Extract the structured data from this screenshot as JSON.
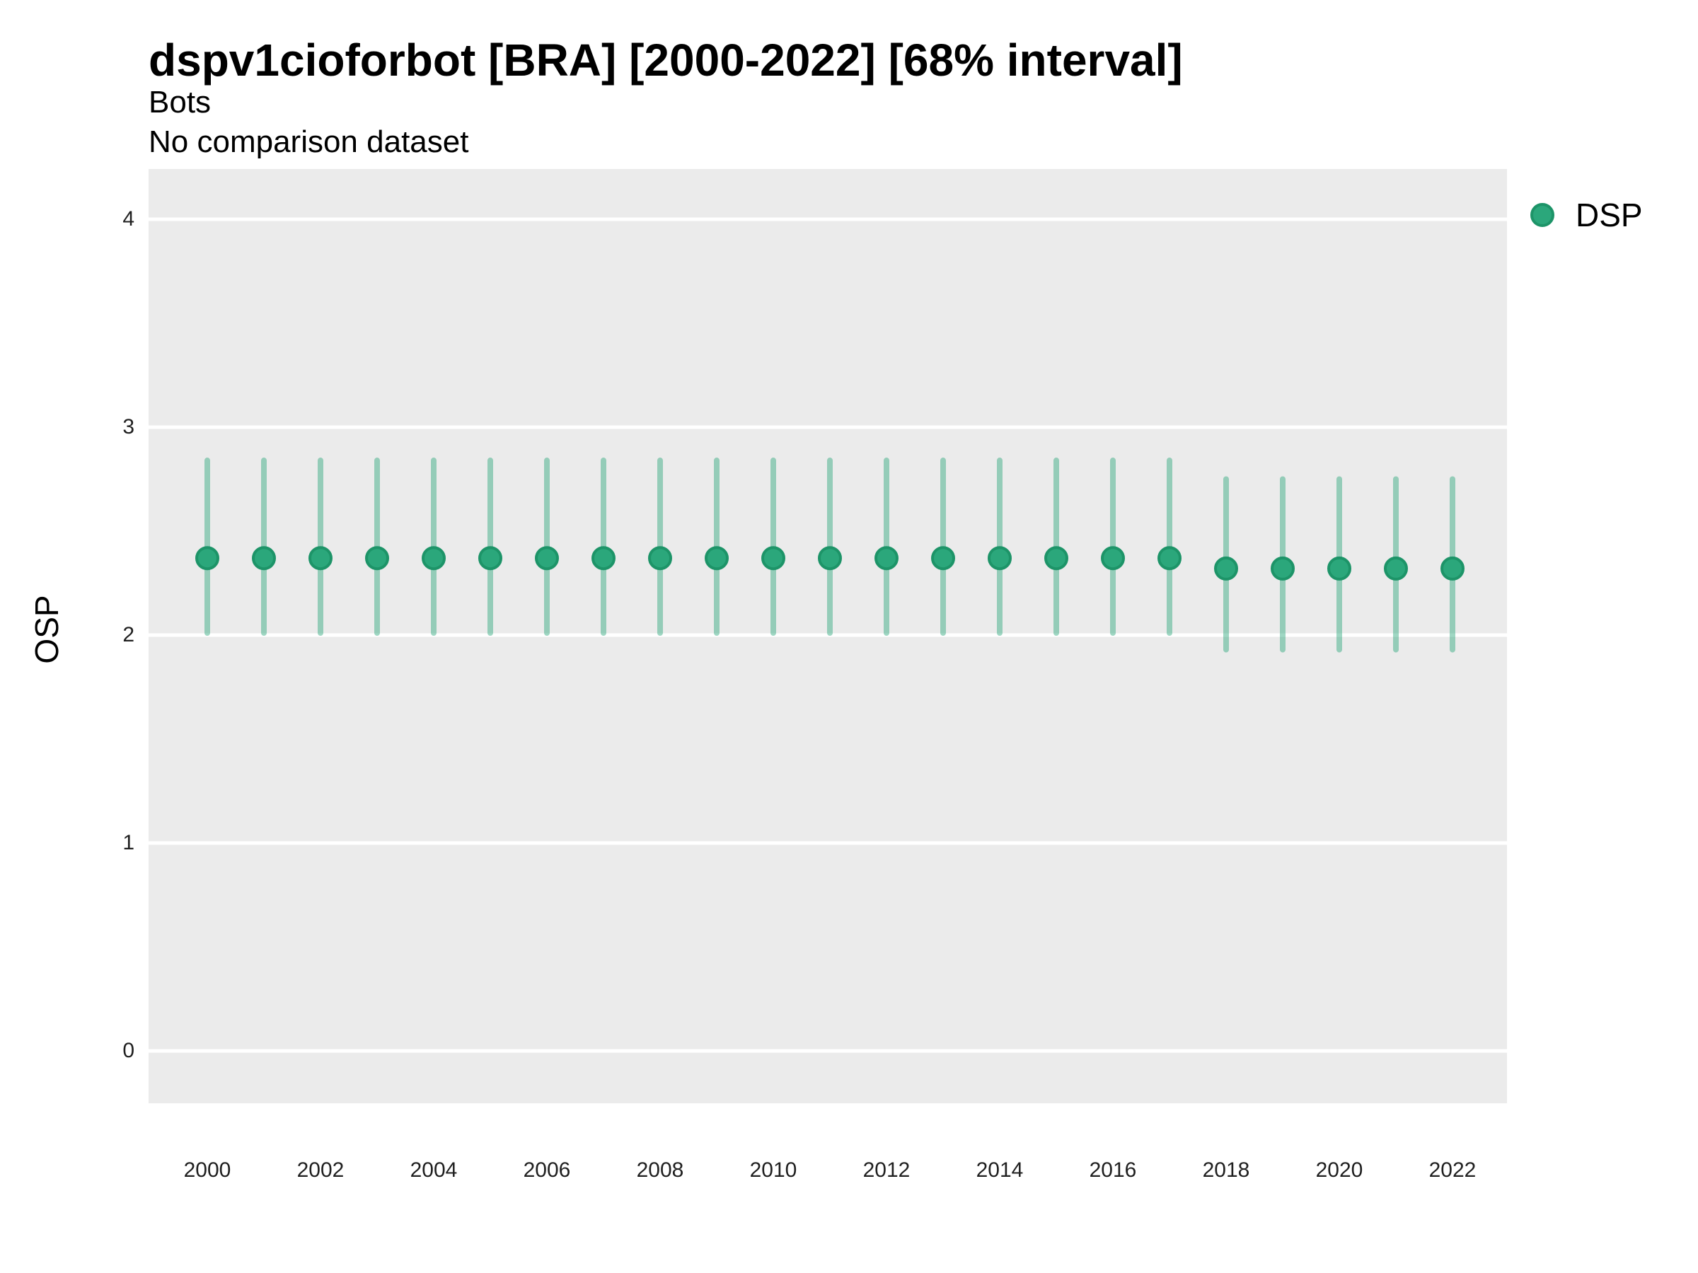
{
  "header": {
    "title": "dspv1cioforbot [BRA] [2000-2022] [68% interval]",
    "subtitle": "Bots",
    "note": "No comparison dataset"
  },
  "axes": {
    "y_title": "OSP",
    "y_ticks": [
      4,
      3,
      2,
      1,
      0
    ],
    "x_tick_labels": [
      2000,
      2002,
      2004,
      2006,
      2008,
      2010,
      2012,
      2014,
      2016,
      2018,
      2020,
      2022
    ]
  },
  "legend": {
    "items": [
      {
        "label": "DSP",
        "color": "#2BA77B"
      }
    ]
  },
  "colors": {
    "panel_background": "#EBEBEB",
    "gridline": "#FFFFFF",
    "point_fill": "#2BA77B",
    "point_stroke": "#1D9468",
    "interval_line": "rgba(43,167,123,0.45)"
  },
  "chart_data": {
    "type": "scatter",
    "mark": "pointrange (dot with 68% interval bar)",
    "title": "dspv1cioforbot [BRA] [2000-2022] [68% interval]",
    "subtitle": "Bots",
    "note": "No comparison dataset",
    "xlabel": "",
    "ylabel": "OSP",
    "ylim": [
      -0.25,
      4.25
    ],
    "yticks": [
      0,
      1,
      2,
      3,
      4
    ],
    "xticks": [
      2000,
      2002,
      2004,
      2006,
      2008,
      2010,
      2012,
      2014,
      2016,
      2018,
      2020,
      2022
    ],
    "grid": "horizontal major gridlines, white on grey panel",
    "legend_position": "right",
    "series": [
      {
        "name": "DSP",
        "color": "#2BA77B",
        "points": [
          {
            "year": 2000,
            "mid": 2.37,
            "lo": 2.01,
            "hi": 2.84
          },
          {
            "year": 2001,
            "mid": 2.37,
            "lo": 2.01,
            "hi": 2.84
          },
          {
            "year": 2002,
            "mid": 2.37,
            "lo": 2.01,
            "hi": 2.84
          },
          {
            "year": 2003,
            "mid": 2.37,
            "lo": 2.01,
            "hi": 2.84
          },
          {
            "year": 2004,
            "mid": 2.37,
            "lo": 2.01,
            "hi": 2.84
          },
          {
            "year": 2005,
            "mid": 2.37,
            "lo": 2.01,
            "hi": 2.84
          },
          {
            "year": 2006,
            "mid": 2.37,
            "lo": 2.01,
            "hi": 2.84
          },
          {
            "year": 2007,
            "mid": 2.37,
            "lo": 2.01,
            "hi": 2.84
          },
          {
            "year": 2008,
            "mid": 2.37,
            "lo": 2.01,
            "hi": 2.84
          },
          {
            "year": 2009,
            "mid": 2.37,
            "lo": 2.01,
            "hi": 2.84
          },
          {
            "year": 2010,
            "mid": 2.37,
            "lo": 2.01,
            "hi": 2.84
          },
          {
            "year": 2011,
            "mid": 2.37,
            "lo": 2.01,
            "hi": 2.84
          },
          {
            "year": 2012,
            "mid": 2.37,
            "lo": 2.01,
            "hi": 2.84
          },
          {
            "year": 2013,
            "mid": 2.37,
            "lo": 2.01,
            "hi": 2.84
          },
          {
            "year": 2014,
            "mid": 2.37,
            "lo": 2.01,
            "hi": 2.84
          },
          {
            "year": 2015,
            "mid": 2.37,
            "lo": 2.01,
            "hi": 2.84
          },
          {
            "year": 2016,
            "mid": 2.37,
            "lo": 2.01,
            "hi": 2.84
          },
          {
            "year": 2017,
            "mid": 2.37,
            "lo": 2.01,
            "hi": 2.84
          },
          {
            "year": 2018,
            "mid": 2.32,
            "lo": 1.93,
            "hi": 2.75
          },
          {
            "year": 2019,
            "mid": 2.32,
            "lo": 1.93,
            "hi": 2.75
          },
          {
            "year": 2020,
            "mid": 2.32,
            "lo": 1.93,
            "hi": 2.75
          },
          {
            "year": 2021,
            "mid": 2.32,
            "lo": 1.93,
            "hi": 2.75
          },
          {
            "year": 2022,
            "mid": 2.32,
            "lo": 1.93,
            "hi": 2.75
          }
        ]
      }
    ]
  }
}
